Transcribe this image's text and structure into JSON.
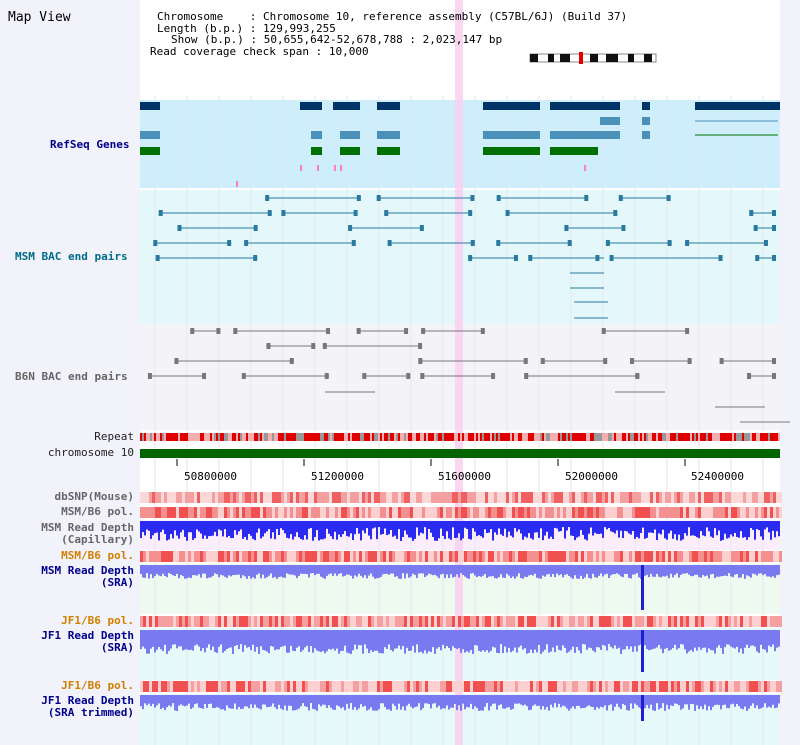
{
  "app": {
    "title": "Map View"
  },
  "info": {
    "chromosome_key": "Chromosome",
    "chromosome_val": "Chromosome 10, reference assembly (C57BL/6J) (Build 37)",
    "length_key": "Length (b.p.)",
    "length_val": "129,993,255",
    "show_key": "Show (b.p.)",
    "show_val": "50,655,642-52,678,788 : 2,023,147 bp",
    "coverage_key": "Read coverage check span",
    "coverage_val": "10,000"
  },
  "tracks": {
    "refseq": "RefSeq Genes",
    "msm_bac": "MSM BAC end pairs",
    "b6n_bac": "B6N BAC end pairs",
    "repeat": "Repeat",
    "chromosome": "chromosome 10",
    "dbsnp": "dbSNP(Mouse)",
    "msm_b6_pol_1": "MSM/B6 pol.",
    "msm_depth_cap_1": "MSM Read Depth",
    "msm_depth_cap_2": "(Capillary)",
    "msm_b6_pol_2": "MSM/B6 pol.",
    "msm_depth_sra_1": "MSM Read Depth",
    "msm_depth_sra_2": "(SRA)",
    "jf1_b6_pol_1": "JF1/B6 pol.",
    "jf1_depth_sra_1": "JF1 Read Depth",
    "jf1_depth_sra_2": "(SRA)",
    "jf1_b6_pol_2": "JF1/B6 pol.",
    "jf1_depth_trim_1": "JF1 Read Depth",
    "jf1_depth_trim_2": "(SRA trimmed)"
  },
  "axis": {
    "ticks": [
      "50800000",
      "51200000",
      "51600000",
      "52000000",
      "52400000"
    ]
  },
  "colors": {
    "refseq_bg": "#cdeefa",
    "msm_bg": "#e4f8fb",
    "b6n_bg": "#f4f4f8",
    "chromosome": "#006400",
    "repeat": "#e00000",
    "depth_cap": "#2a2af0",
    "depth_sra": "#7a7af0",
    "highlight": "#f8d0f0"
  }
}
